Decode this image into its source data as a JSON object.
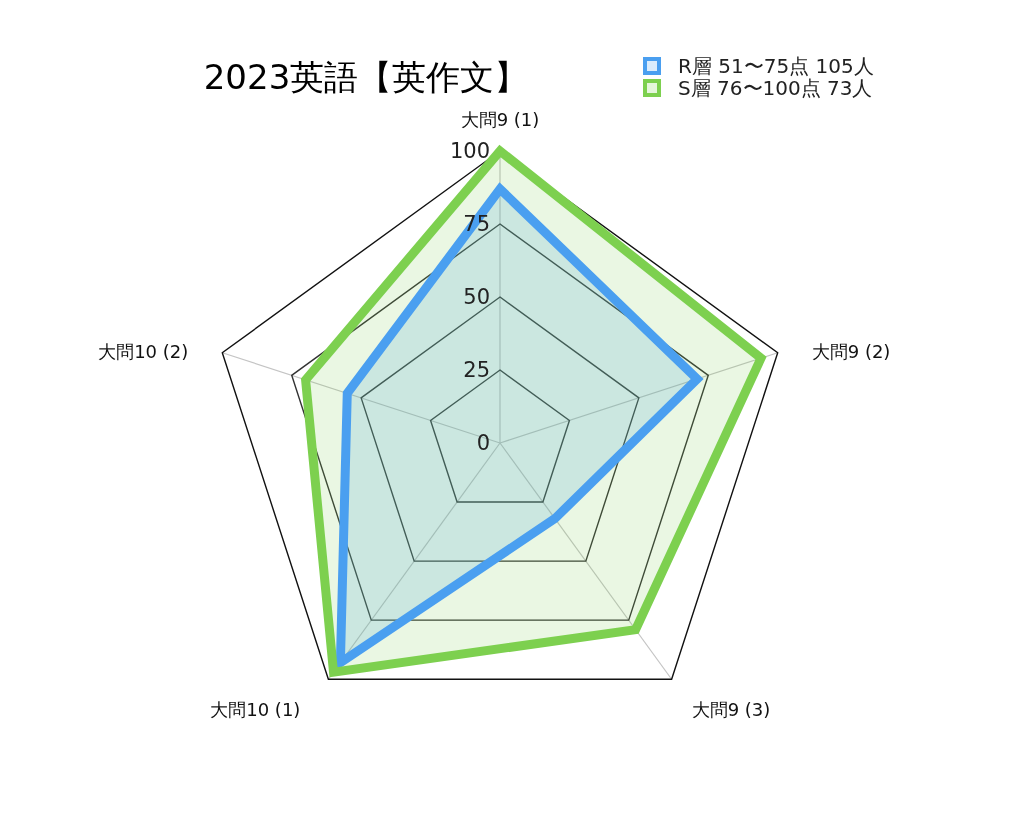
{
  "chart_data": {
    "type": "radar",
    "title": "2023英語【英作文】",
    "categories": [
      "大問9 (1)",
      "大問9 (2)",
      "大問9 (3)",
      "大問10 (1)",
      "大問10 (2)"
    ],
    "series": [
      {
        "name": "R層 51〜75点 105人",
        "color": "#4a9ff0",
        "values": [
          87,
          71,
          32,
          93,
          55
        ]
      },
      {
        "name": "S層 76〜100点 73人",
        "color": "#7dd04f",
        "values": [
          100,
          94,
          79,
          97,
          70
        ]
      }
    ],
    "ylim": [
      0,
      100
    ],
    "yticks": [
      0,
      25,
      50,
      75,
      100
    ],
    "grid": true,
    "legend": "top right"
  }
}
